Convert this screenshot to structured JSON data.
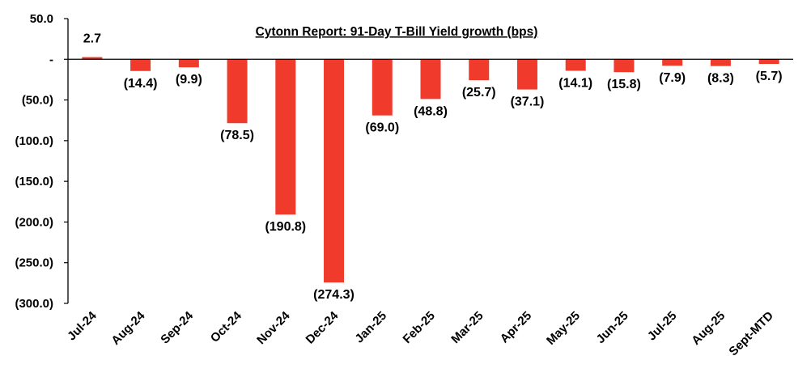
{
  "chart_data": {
    "type": "bar",
    "title": "Cytonn Report:  91-Day T-Bill Yield growth (bps)",
    "xlabel": "",
    "ylabel": "",
    "ylim": [
      -300,
      50
    ],
    "yticks": [
      50,
      0,
      -50,
      -100,
      -150,
      -200,
      -250,
      -300
    ],
    "ytick_labels": [
      "50.0",
      "-",
      "(50.0)",
      "(100.0)",
      "(150.0)",
      "(200.0)",
      "(250.0)",
      "(300.0)"
    ],
    "categories": [
      "Jul-24",
      "Aug-24",
      "Sep-24",
      "Oct-24",
      "Nov-24",
      "Dec-24",
      "Jan-25",
      "Feb-25",
      "Mar-25",
      "Apr-25",
      "May-25",
      "Jun-25",
      "Jul-25",
      "Aug-25",
      "Sept-MTD"
    ],
    "values": [
      2.7,
      -14.4,
      -9.9,
      -78.5,
      -190.8,
      -274.3,
      -69.0,
      -48.8,
      -25.7,
      -37.1,
      -14.1,
      -15.8,
      -7.9,
      -8.3,
      -5.7
    ],
    "data_labels": [
      "2.7",
      "(14.4)",
      "(9.9)",
      "(78.5)",
      "(190.8)",
      "(274.3)",
      "(69.0)",
      "(48.8)",
      "(25.7)",
      "(37.1)",
      "(14.1)",
      "(15.8)",
      "(7.9)",
      "(8.3)",
      "(5.7)"
    ],
    "colors": {
      "negative": "#ef3a2c",
      "positive": "#ef3a2c",
      "axis": "#000000"
    },
    "grid": false,
    "legend": "none"
  }
}
